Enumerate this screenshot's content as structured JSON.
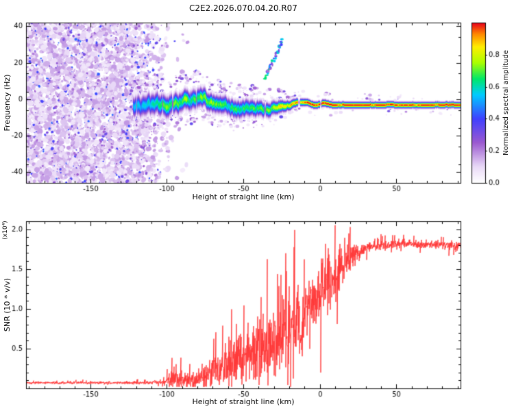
{
  "chart_data": [
    {
      "type": "heatmap",
      "title": "C2E2.2026.070.04.20.R07",
      "xlabel": "Height of straight line (km)",
      "ylabel": "Frequency (Hz)",
      "xlim": [
        -192,
        92
      ],
      "ylim": [
        -46,
        42
      ],
      "xticks": [
        {
          "v": -150,
          "label": "-150"
        },
        {
          "v": -100,
          "label": "-100"
        },
        {
          "v": -50,
          "label": "-50"
        },
        {
          "v": 0,
          "label": "0"
        },
        {
          "v": 50,
          "label": "50"
        }
      ],
      "yticks": [
        {
          "v": -40,
          "label": "-40"
        },
        {
          "v": -20,
          "label": "-20"
        },
        {
          "v": 0,
          "label": "0"
        },
        {
          "v": 20,
          "label": "20"
        },
        {
          "v": 40,
          "label": "40"
        }
      ],
      "xminor": 10,
      "yminor": 10,
      "colorbar": {
        "label": "Normalized spectral amplitude",
        "range": [
          0,
          1
        ],
        "ticks": [
          {
            "v": 0.0,
            "label": "0.0"
          },
          {
            "v": 0.2,
            "label": "0.2"
          },
          {
            "v": 0.4,
            "label": "0.4"
          },
          {
            "v": 0.6,
            "label": "0.6"
          },
          {
            "v": 0.8,
            "label": "0.8"
          }
        ]
      },
      "colormap": [
        {
          "v": 0.0,
          "c": "#ffffff"
        },
        {
          "v": 0.1,
          "c": "#e9d9f7"
        },
        {
          "v": 0.25,
          "c": "#9b59d0"
        },
        {
          "v": 0.4,
          "c": "#4040ff"
        },
        {
          "v": 0.55,
          "c": "#00ccff"
        },
        {
          "v": 0.65,
          "c": "#00e868"
        },
        {
          "v": 0.75,
          "c": "#aaff00"
        },
        {
          "v": 0.85,
          "c": "#ffee00"
        },
        {
          "v": 0.93,
          "c": "#ff8800"
        },
        {
          "v": 1.0,
          "c": "#e8001b"
        }
      ],
      "noise_region": {
        "x_full_until": -125,
        "x_fade_to": -95
      },
      "signal_track": [
        {
          "x": -122,
          "f": -4.0,
          "width": 6.0,
          "amp": 0.5
        },
        {
          "x": -112,
          "f": -2.5,
          "width": 6.0,
          "amp": 0.6
        },
        {
          "x": -100,
          "f": -3.0,
          "width": 6.0,
          "amp": 0.65
        },
        {
          "x": -90,
          "f": -0.5,
          "width": 5.5,
          "amp": 0.7
        },
        {
          "x": -80,
          "f": 1.5,
          "width": 5.5,
          "amp": 0.7
        },
        {
          "x": -70,
          "f": -1.5,
          "width": 5.0,
          "amp": 0.7
        },
        {
          "x": -62,
          "f": -3.5,
          "width": 5.0,
          "amp": 0.68
        },
        {
          "x": -52,
          "f": -5.0,
          "width": 5.0,
          "amp": 0.65
        },
        {
          "x": -43,
          "f": -4.0,
          "width": 4.5,
          "amp": 0.7
        },
        {
          "x": -34,
          "f": -5.5,
          "width": 4.2,
          "amp": 0.72
        },
        {
          "x": -26,
          "f": -3.5,
          "width": 3.5,
          "amp": 0.8
        },
        {
          "x": -19,
          "f": -2.5,
          "width": 2.6,
          "amp": 0.9
        },
        {
          "x": -13,
          "f": -1.5,
          "width": 2.2,
          "amp": 0.95
        },
        {
          "x": -8,
          "f": -2.0,
          "width": 2.0,
          "amp": 1.0
        },
        {
          "x": -3,
          "f": -3.5,
          "width": 2.0,
          "amp": 1.0
        },
        {
          "x": 2,
          "f": -2.0,
          "width": 2.0,
          "amp": 1.0
        },
        {
          "x": 8,
          "f": -3.0,
          "width": 1.9,
          "amp": 1.0
        },
        {
          "x": 92,
          "f": -3.0,
          "width": 1.8,
          "amp": 1.0
        }
      ],
      "gaps": [
        [
          -14.2,
          -13.2
        ],
        [
          0.0,
          1.0
        ]
      ],
      "streak": {
        "x0": -36,
        "y0": 11,
        "x1": -24,
        "y1": 33,
        "amp": 0.5
      }
    },
    {
      "type": "line",
      "xlabel": "Height of straight line (km)",
      "ylabel": "SNR (10 * v/v)",
      "scale_label": "(x10⁴)",
      "color": "#ff3030",
      "xlim": [
        -192,
        92
      ],
      "ylim": [
        0,
        2.1
      ],
      "xticks": [
        {
          "v": -150,
          "label": "-150"
        },
        {
          "v": -100,
          "label": "-100"
        },
        {
          "v": -50,
          "label": "-50"
        },
        {
          "v": 0,
          "label": "0"
        },
        {
          "v": 50,
          "label": "50"
        }
      ],
      "yticks": [
        {
          "v": 0.5,
          "label": "0.5"
        },
        {
          "v": 1.0,
          "label": "1.0"
        },
        {
          "v": 1.5,
          "label": "1.5"
        },
        {
          "v": 2.0,
          "label": "2.0"
        }
      ],
      "xminor": 10,
      "yminor": 0.1,
      "envelope": [
        {
          "x": -192,
          "mean": 0.07,
          "noise": 0.015
        },
        {
          "x": -115,
          "mean": 0.07,
          "noise": 0.02
        },
        {
          "x": -101,
          "mean": 0.08,
          "noise": 0.03
        },
        {
          "x": -95,
          "mean": 0.15,
          "noise": 0.2
        },
        {
          "x": -89,
          "mean": 0.1,
          "noise": 0.08
        },
        {
          "x": -80,
          "mean": 0.12,
          "noise": 0.12
        },
        {
          "x": -72,
          "mean": 0.2,
          "noise": 0.2
        },
        {
          "x": -62,
          "mean": 0.3,
          "noise": 0.28
        },
        {
          "x": -52,
          "mean": 0.38,
          "noise": 0.33
        },
        {
          "x": -42,
          "mean": 0.45,
          "noise": 0.42
        },
        {
          "x": -32,
          "mean": 0.55,
          "noise": 0.5
        },
        {
          "x": -24,
          "mean": 0.65,
          "noise": 0.6
        },
        {
          "x": -16,
          "mean": 0.75,
          "noise": 0.6
        },
        {
          "x": -9,
          "mean": 0.95,
          "noise": 0.5
        },
        {
          "x": -2,
          "mean": 1.15,
          "noise": 0.45
        },
        {
          "x": 6,
          "mean": 1.3,
          "noise": 0.5
        },
        {
          "x": 14,
          "mean": 1.5,
          "noise": 0.3
        },
        {
          "x": 22,
          "mean": 1.68,
          "noise": 0.15
        },
        {
          "x": 32,
          "mean": 1.78,
          "noise": 0.07
        },
        {
          "x": 55,
          "mean": 1.82,
          "noise": 0.05
        },
        {
          "x": 92,
          "mean": 1.8,
          "noise": 0.06
        }
      ]
    }
  ]
}
